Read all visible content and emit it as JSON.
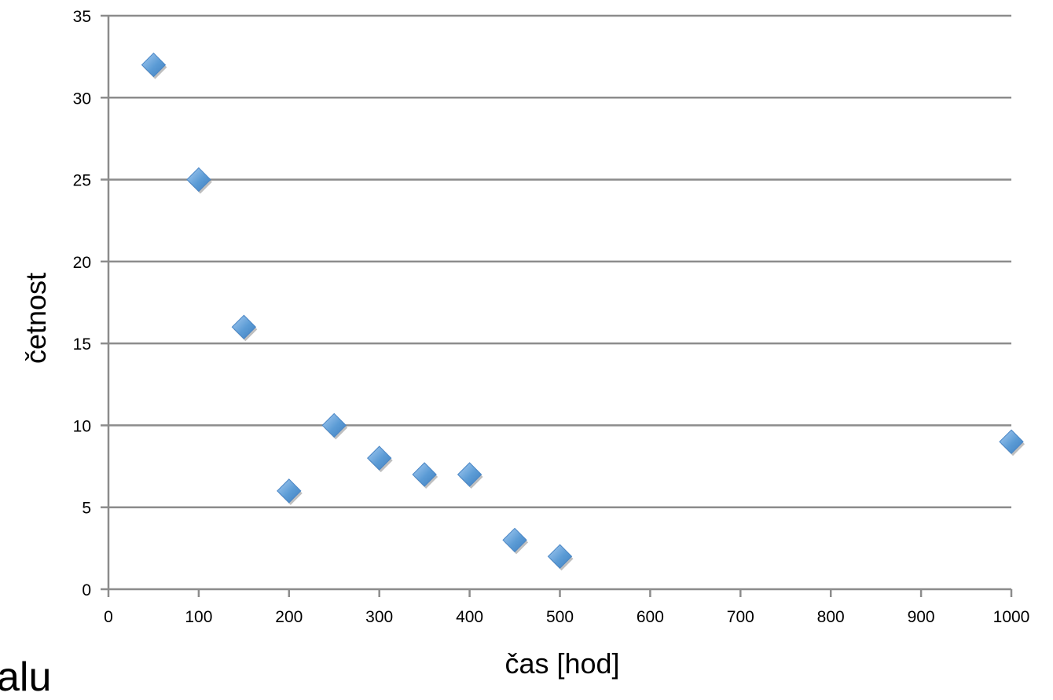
{
  "chart_data": {
    "type": "scatter",
    "title": "",
    "xlabel": "čas [hod]",
    "ylabel": "četnost",
    "xlim": [
      0,
      1000
    ],
    "ylim": [
      0,
      35
    ],
    "xticks": [
      0,
      100,
      200,
      300,
      400,
      500,
      600,
      700,
      800,
      900,
      1000
    ],
    "yticks": [
      0,
      5,
      10,
      15,
      20,
      25,
      30,
      35
    ],
    "grid": "horizontal",
    "legend": "none",
    "marker": "diamond",
    "marker_color": "#5b9bd5",
    "series": [
      {
        "x": [
          50,
          100,
          150,
          200,
          250,
          300,
          350,
          400,
          450,
          500,
          1000
        ],
        "y": [
          32,
          25,
          16,
          6,
          10,
          8,
          7,
          7,
          3,
          2,
          9
        ]
      }
    ]
  },
  "partial_text": "alu"
}
